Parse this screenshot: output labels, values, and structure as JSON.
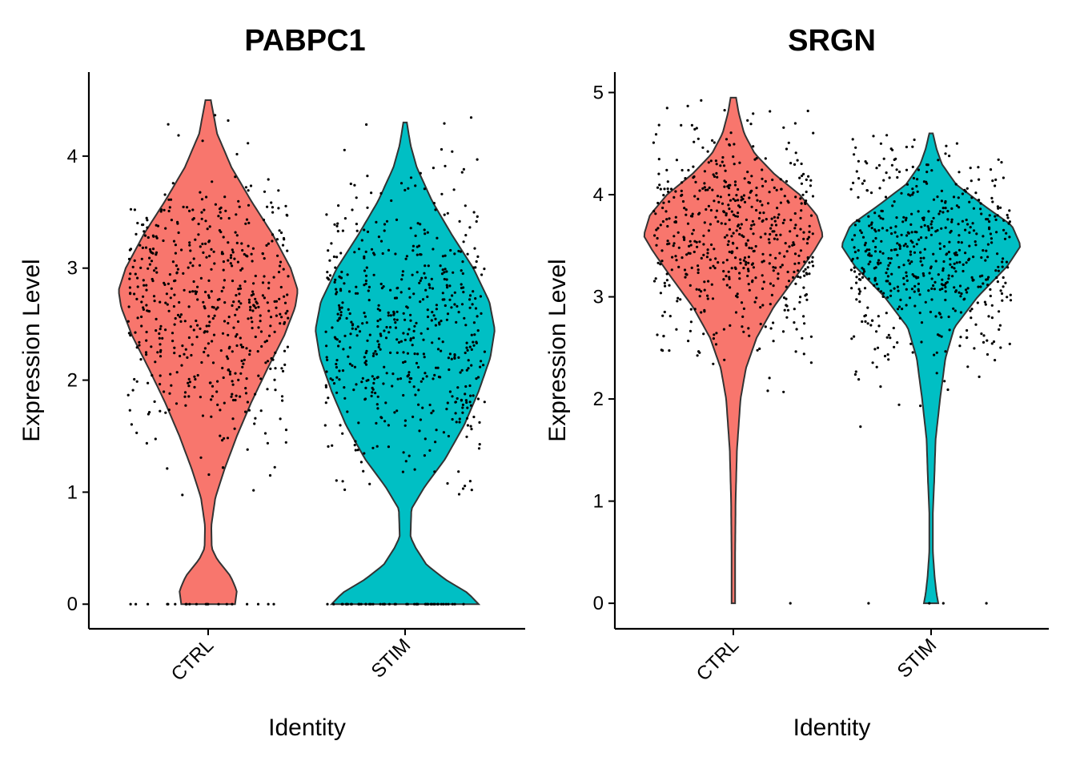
{
  "chart_data": [
    {
      "type": "violin",
      "title": "PABPC1",
      "xlabel": "Identity",
      "ylabel": "Expression Level",
      "categories": [
        "CTRL",
        "STIM"
      ],
      "yticks": [
        0,
        1,
        2,
        3,
        4
      ],
      "ylim": [
        -0.22,
        4.75
      ],
      "grid": false,
      "legend": "none",
      "colors": [
        "#F8766D",
        "#00BFC4"
      ],
      "violins": [
        {
          "category": "CTRL",
          "color": "#F8766D",
          "max": 4.5,
          "profile": [
            [
              0.0,
              0.3
            ],
            [
              0.12,
              0.32
            ],
            [
              0.25,
              0.25
            ],
            [
              0.4,
              0.1
            ],
            [
              0.5,
              0.04
            ],
            [
              0.7,
              0.035
            ],
            [
              0.95,
              0.08
            ],
            [
              1.2,
              0.18
            ],
            [
              1.5,
              0.32
            ],
            [
              1.8,
              0.48
            ],
            [
              2.1,
              0.66
            ],
            [
              2.4,
              0.85
            ],
            [
              2.65,
              0.97
            ],
            [
              2.8,
              1.0
            ],
            [
              3.0,
              0.92
            ],
            [
              3.3,
              0.72
            ],
            [
              3.6,
              0.48
            ],
            [
              3.9,
              0.26
            ],
            [
              4.2,
              0.1
            ],
            [
              4.5,
              0.03
            ]
          ],
          "dots_zero": 20,
          "dots_center": 2.7,
          "dots_sd": 0.6
        },
        {
          "category": "STIM",
          "color": "#00BFC4",
          "max": 4.3,
          "profile": [
            [
              0.0,
              0.82
            ],
            [
              0.1,
              0.7
            ],
            [
              0.22,
              0.45
            ],
            [
              0.35,
              0.24
            ],
            [
              0.5,
              0.12
            ],
            [
              0.6,
              0.06
            ],
            [
              0.85,
              0.07
            ],
            [
              1.05,
              0.22
            ],
            [
              1.3,
              0.45
            ],
            [
              1.6,
              0.66
            ],
            [
              1.9,
              0.82
            ],
            [
              2.2,
              0.95
            ],
            [
              2.45,
              1.0
            ],
            [
              2.7,
              0.94
            ],
            [
              3.0,
              0.76
            ],
            [
              3.3,
              0.52
            ],
            [
              3.6,
              0.3
            ],
            [
              3.9,
              0.13
            ],
            [
              4.1,
              0.06
            ],
            [
              4.3,
              0.02
            ]
          ],
          "dots_zero": 48,
          "dots_center": 2.45,
          "dots_sd": 0.65
        }
      ]
    },
    {
      "type": "violin",
      "title": "SRGN",
      "xlabel": "Identity",
      "ylabel": "Expression Level",
      "categories": [
        "CTRL",
        "STIM"
      ],
      "yticks": [
        0,
        1,
        2,
        3,
        4,
        5
      ],
      "ylim": [
        -0.25,
        5.2
      ],
      "grid": false,
      "legend": "none",
      "colors": [
        "#F8766D",
        "#00BFC4"
      ],
      "violins": [
        {
          "category": "CTRL",
          "color": "#F8766D",
          "max": 4.95,
          "profile": [
            [
              0.0,
              0.02
            ],
            [
              0.5,
              0.02
            ],
            [
              1.0,
              0.025
            ],
            [
              1.5,
              0.04
            ],
            [
              2.0,
              0.08
            ],
            [
              2.3,
              0.14
            ],
            [
              2.6,
              0.26
            ],
            [
              2.9,
              0.45
            ],
            [
              3.2,
              0.7
            ],
            [
              3.45,
              0.9
            ],
            [
              3.6,
              1.0
            ],
            [
              3.8,
              0.93
            ],
            [
              4.0,
              0.74
            ],
            [
              4.2,
              0.46
            ],
            [
              4.4,
              0.24
            ],
            [
              4.6,
              0.12
            ],
            [
              4.8,
              0.06
            ],
            [
              4.95,
              0.03
            ]
          ],
          "dots_zero": 1,
          "dots_center": 3.6,
          "dots_sd": 0.55
        },
        {
          "category": "STIM",
          "color": "#00BFC4",
          "max": 4.6,
          "profile": [
            [
              0.0,
              0.08
            ],
            [
              0.1,
              0.06
            ],
            [
              0.25,
              0.04
            ],
            [
              0.5,
              0.02
            ],
            [
              0.9,
              0.02
            ],
            [
              1.2,
              0.035
            ],
            [
              1.6,
              0.05
            ],
            [
              2.0,
              0.1
            ],
            [
              2.4,
              0.16
            ],
            [
              2.7,
              0.26
            ],
            [
              3.0,
              0.52
            ],
            [
              3.3,
              0.85
            ],
            [
              3.5,
              1.0
            ],
            [
              3.7,
              0.9
            ],
            [
              3.9,
              0.58
            ],
            [
              4.1,
              0.28
            ],
            [
              4.3,
              0.12
            ],
            [
              4.45,
              0.06
            ],
            [
              4.6,
              0.02
            ]
          ],
          "dots_zero": 4,
          "dots_center": 3.4,
          "dots_sd": 0.55
        }
      ]
    }
  ]
}
